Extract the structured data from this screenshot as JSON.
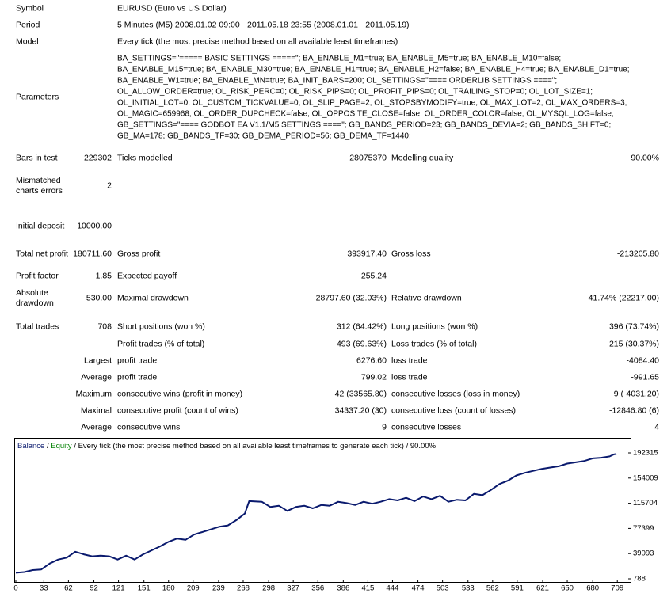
{
  "report": {
    "rows": [
      [
        "Symbol",
        "EURUSD (Euro vs US Dollar)"
      ],
      [
        "Period",
        "5 Minutes (M5) 2008.01.02 09:00 - 2011.05.18 23:55 (2008.01.01 - 2011.05.19)"
      ],
      [
        "Model",
        "Every tick (the most precise method based on all available least timeframes)"
      ],
      [
        "Bars in test",
        "229302",
        "Ticks modelled",
        "28075370",
        "Modelling quality",
        "90.00%"
      ],
      [
        "Mismatched charts errors",
        "2"
      ],
      [
        "Initial deposit",
        "10000.00"
      ],
      [
        "Total net profit",
        "180711.60",
        "Gross profit",
        "393917.40",
        "Gross loss",
        "-213205.80"
      ],
      [
        "Profit factor",
        "1.85",
        "Expected payoff",
        "255.24"
      ],
      [
        "Absolute drawdown",
        "530.00",
        "Maximal drawdown",
        "28797.60 (32.03%)",
        "Relative drawdown",
        "41.74% (22217.00)"
      ],
      [
        "Total trades",
        "708",
        "Short positions (won %)",
        "312 (64.42%)",
        "Long positions (won %)",
        "396 (73.74%)"
      ],
      [
        "Profit trades (% of total)",
        "493 (69.63%)",
        "Loss trades (% of total)",
        "215 (30.37%)"
      ],
      [
        "Largest",
        "profit trade",
        "6276.60",
        "loss trade",
        "-4084.40"
      ],
      [
        "Average",
        "profit trade",
        "799.02",
        "loss trade",
        "-991.65"
      ],
      [
        "Maximum",
        "consecutive wins (profit in money)",
        "42 (33565.80)",
        "consecutive losses (loss in money)",
        "9 (-4031.20)"
      ],
      [
        "Maximal",
        "consecutive profit (count of wins)",
        "34337.20 (30)",
        "consecutive loss (count of losses)",
        "-12846.80 (6)"
      ],
      [
        "Average",
        "consecutive wins",
        "9",
        "consecutive losses",
        "4"
      ]
    ],
    "parameters": {
      "label": "Parameters",
      "lines": [
        "BA_SETTINGS=\"===== BASIC SETTINGS =====\"; BA_ENABLE_M1=true; BA_ENABLE_M5=true; BA_ENABLE_M10=false;",
        "BA_ENABLE_M15=true; BA_ENABLE_M30=true; BA_ENABLE_H1=true; BA_ENABLE_H2=false; BA_ENABLE_H4=true; BA_ENABLE_D1=true;",
        "BA_ENABLE_W1=true; BA_ENABLE_MN=true; BA_INIT_BARS=200; OL_SETTINGS=\"==== ORDERLIB SETTINGS ====\";",
        "OL_ALLOW_ORDER=true; OL_RISK_PERC=0; OL_RISK_PIPS=0; OL_PROFIT_PIPS=0; OL_TRAILING_STOP=0; OL_LOT_SIZE=1;",
        "OL_INITIAL_LOT=0; OL_CUSTOM_TICKVALUE=0; OL_SLIP_PAGE=2; OL_STOPSBYMODIFY=true; OL_MAX_LOT=2; OL_MAX_ORDERS=3;",
        "OL_MAGIC=659968; OL_ORDER_DUPCHECK=false; OL_OPPOSITE_CLOSE=false; OL_ORDER_COLOR=false; OL_MYSQL_LOG=false;",
        "GB_SETTINGS=\"==== GODBOT EA V1.1/M5 SETTINGS ====\"; GB_BANDS_PERIOD=23; GB_BANDS_DEVIA=2; GB_BANDS_SHIFT=0;",
        "GB_MA=178; GB_BANDS_TF=30; GB_DEMA_PERIOD=56; GB_DEMA_TF=1440;"
      ]
    }
  },
  "chart_data": {
    "type": "line",
    "separator": "/",
    "equity_label": "Equity",
    "equity_color": "#008000",
    "subtitle": "Every tick (the most precise method based on all available least timeframes to generate each tick) / 90.00%",
    "x": [
      0,
      10,
      20,
      30,
      40,
      50,
      60,
      70,
      80,
      90,
      100,
      110,
      120,
      130,
      140,
      150,
      160,
      170,
      180,
      190,
      200,
      210,
      220,
      230,
      240,
      250,
      260,
      270,
      275,
      290,
      300,
      310,
      320,
      330,
      340,
      350,
      360,
      370,
      380,
      390,
      400,
      410,
      420,
      430,
      440,
      450,
      460,
      470,
      480,
      490,
      500,
      510,
      520,
      530,
      540,
      550,
      560,
      570,
      580,
      590,
      600,
      610,
      620,
      630,
      640,
      650,
      660,
      670,
      680,
      690,
      700,
      705,
      708
    ],
    "series": [
      {
        "name": "Balance",
        "color": "#0a1a6e",
        "values": [
          10000,
          11000,
          14000,
          15000,
          24000,
          30000,
          33000,
          42000,
          38000,
          35000,
          36000,
          35000,
          30000,
          36000,
          30000,
          38000,
          44000,
          50000,
          57000,
          62000,
          60000,
          68000,
          72000,
          76000,
          80000,
          82000,
          90000,
          100000,
          119000,
          118000,
          110000,
          112000,
          104000,
          110000,
          112000,
          108000,
          113000,
          112000,
          118000,
          116000,
          113000,
          118000,
          115000,
          118000,
          122000,
          120000,
          124000,
          119000,
          126000,
          122000,
          127000,
          118000,
          121000,
          120000,
          130000,
          128000,
          136000,
          145000,
          150000,
          158000,
          162000,
          165000,
          168000,
          170000,
          172000,
          176000,
          178000,
          180000,
          184000,
          185000,
          187000,
          190000,
          190711.6
        ]
      }
    ],
    "xlim": [
      0,
      720
    ],
    "ylim": [
      788,
      192315
    ],
    "xticks": [
      0,
      33,
      62,
      92,
      121,
      151,
      180,
      209,
      239,
      268,
      298,
      327,
      356,
      386,
      415,
      444,
      474,
      503,
      533,
      562,
      591,
      621,
      650,
      680,
      709
    ],
    "yticks": [
      788,
      39093,
      77399,
      115704,
      154009,
      192315
    ]
  }
}
